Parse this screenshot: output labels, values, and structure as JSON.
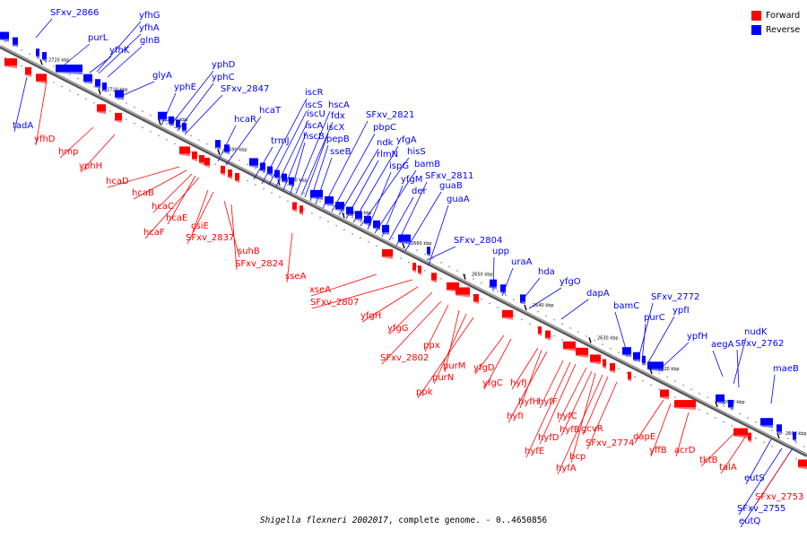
{
  "colors": {
    "forward": "#ff0000",
    "reverse": "#0000ff",
    "backbone": "#7f7f7f"
  },
  "legend": [
    {
      "label": "Forward",
      "color": "#ff0000"
    },
    {
      "label": "Reverse",
      "color": "#0000ff"
    }
  ],
  "caption": {
    "organism": "Shigella flexneri 2002017",
    "rest": ", complete genome. - 0..4650856"
  },
  "scale_ticks": [
    "2720 kbp",
    "2710 kbp",
    "2700 kbp",
    "2690 kbp",
    "2680 kbp",
    "2670 kbp",
    "2660 kbp",
    "2650 kbp",
    "2640 kbp",
    "2630 kbp",
    "2620 kbp",
    "2610 kbp",
    "2600 kbp"
  ],
  "reverse_genes": [
    "SFxv_2866",
    "purL",
    "yfhK",
    "yfhG",
    "yfhA",
    "glnB",
    "glyA",
    "yphE",
    "yphD",
    "yphC",
    "SFxv_2847",
    "hcaR",
    "hcaT",
    "trmJ",
    "iscR",
    "iscS",
    "iscU",
    "iscA",
    "hscB",
    "hscA",
    "fdx",
    "iscX",
    "pepB",
    "sseB",
    "SFxv_2821",
    "pbpC",
    "ndk",
    "rlmN",
    "yfgA",
    "hisS",
    "ispG",
    "bamB",
    "yfgM",
    "der",
    "SFxv_2811",
    "guaB",
    "guaA",
    "SFxv_2804",
    "upp",
    "uraA",
    "hda",
    "yfgO",
    "dapA",
    "bamC",
    "SFxv_2772",
    "ypfI",
    "purC",
    "ypfH",
    "aegA",
    "nudK",
    "SFxv_2762",
    "maeB",
    "eutS",
    "SFxv_2755",
    "eutQ",
    "tadA"
  ],
  "forward_genes": [
    "yfhD",
    "hmp",
    "yphH",
    "hcaD",
    "hcaB",
    "hcaC",
    "hcaE",
    "hcaF",
    "csiE",
    "SFxv_2837",
    "suhB",
    "SFxv_2824",
    "sseA",
    "xseA",
    "SFxv_2807",
    "yfgH",
    "yfgG",
    "SFxv_2802",
    "ppx",
    "purM",
    "purN",
    "ppk",
    "yfgD",
    "yfgC",
    "hyfJ",
    "hyfH",
    "hyfI",
    "hyfF",
    "hyfD",
    "hyfC",
    "hyfE",
    "hyfB",
    "hyfA",
    "bcp",
    "gcvR",
    "SFxv_2774",
    "dapE",
    "yffB",
    "acrD",
    "tktB",
    "talA",
    "SFxv_2753"
  ]
}
